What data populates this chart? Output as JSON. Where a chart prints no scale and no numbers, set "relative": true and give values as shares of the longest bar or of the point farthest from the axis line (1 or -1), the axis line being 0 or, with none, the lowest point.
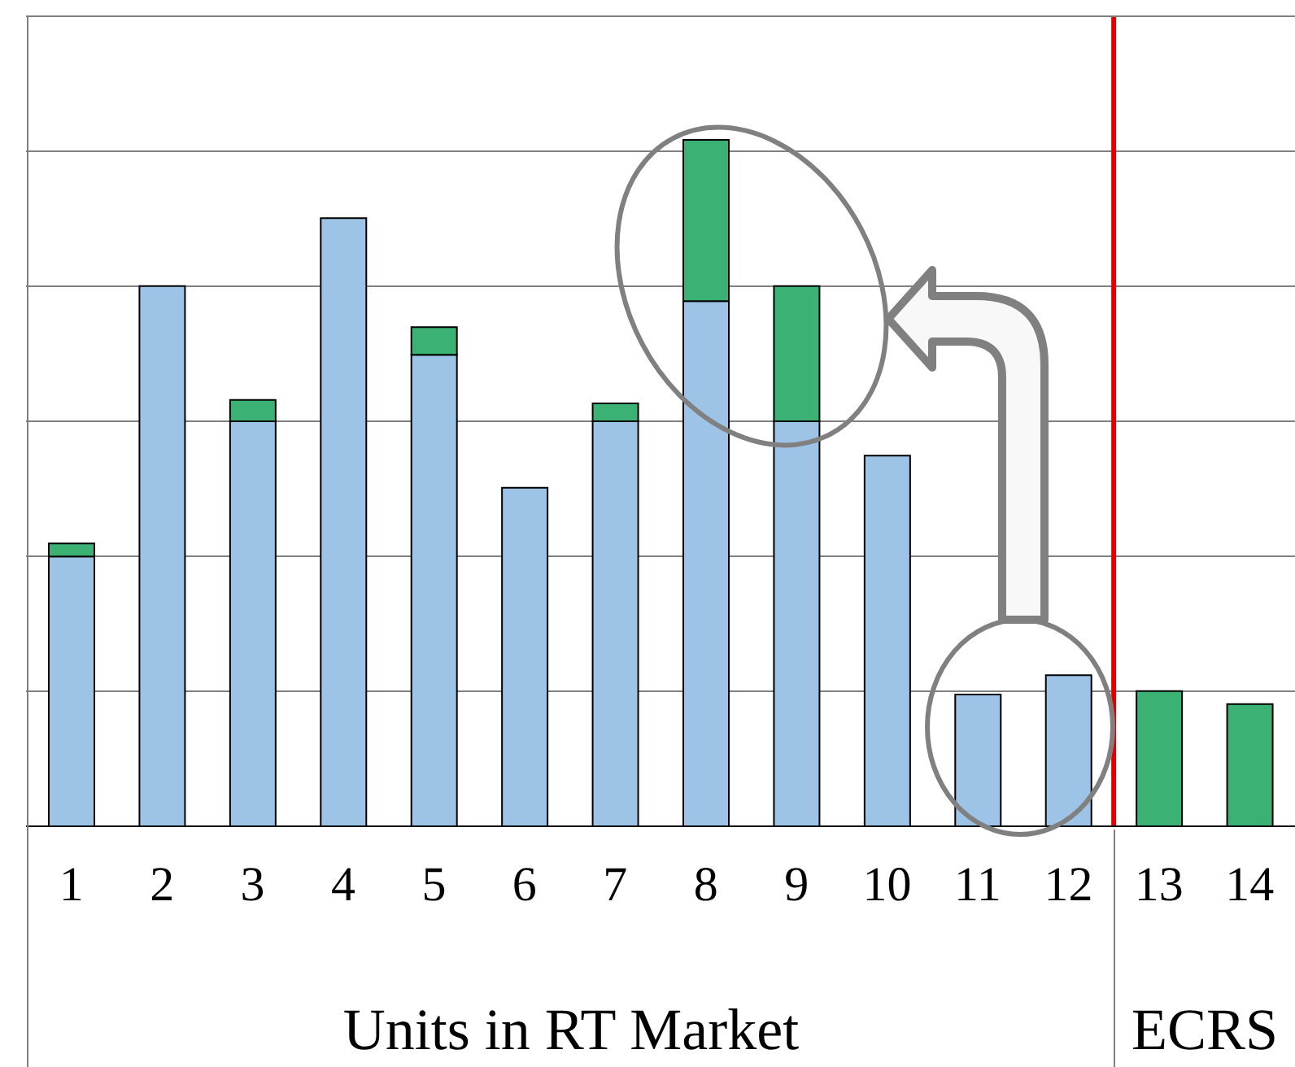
{
  "chart_data": {
    "type": "bar",
    "stacked": true,
    "relative": true,
    "grid": "y",
    "legend": false,
    "x": [
      1,
      2,
      3,
      4,
      5,
      6,
      7,
      8,
      9,
      10,
      11,
      12,
      13,
      14
    ],
    "xlim": [
      0.5,
      14.5
    ],
    "xticks": [
      1,
      2,
      3,
      4,
      5,
      6,
      7,
      8,
      9,
      10,
      11,
      12,
      13,
      14
    ],
    "ref_lines": [
      {
        "axis": "x",
        "value": 12.5,
        "color": "#e00000"
      }
    ],
    "series": [
      {
        "color": "#9dc3e6",
        "values": [
          0.393,
          0.787,
          0.59,
          0.886,
          0.687,
          0.493,
          0.59,
          0.765,
          0.59,
          0.54,
          0.192,
          0.22,
          null,
          null
        ]
      },
      {
        "color": "#3bb273",
        "values": [
          0.019,
          null,
          0.031,
          null,
          0.04,
          null,
          0.026,
          0.235,
          0.197,
          null,
          null,
          null,
          0.197,
          0.178
        ]
      }
    ],
    "annotations": [
      "Units in RT Market",
      "ECRS"
    ]
  }
}
